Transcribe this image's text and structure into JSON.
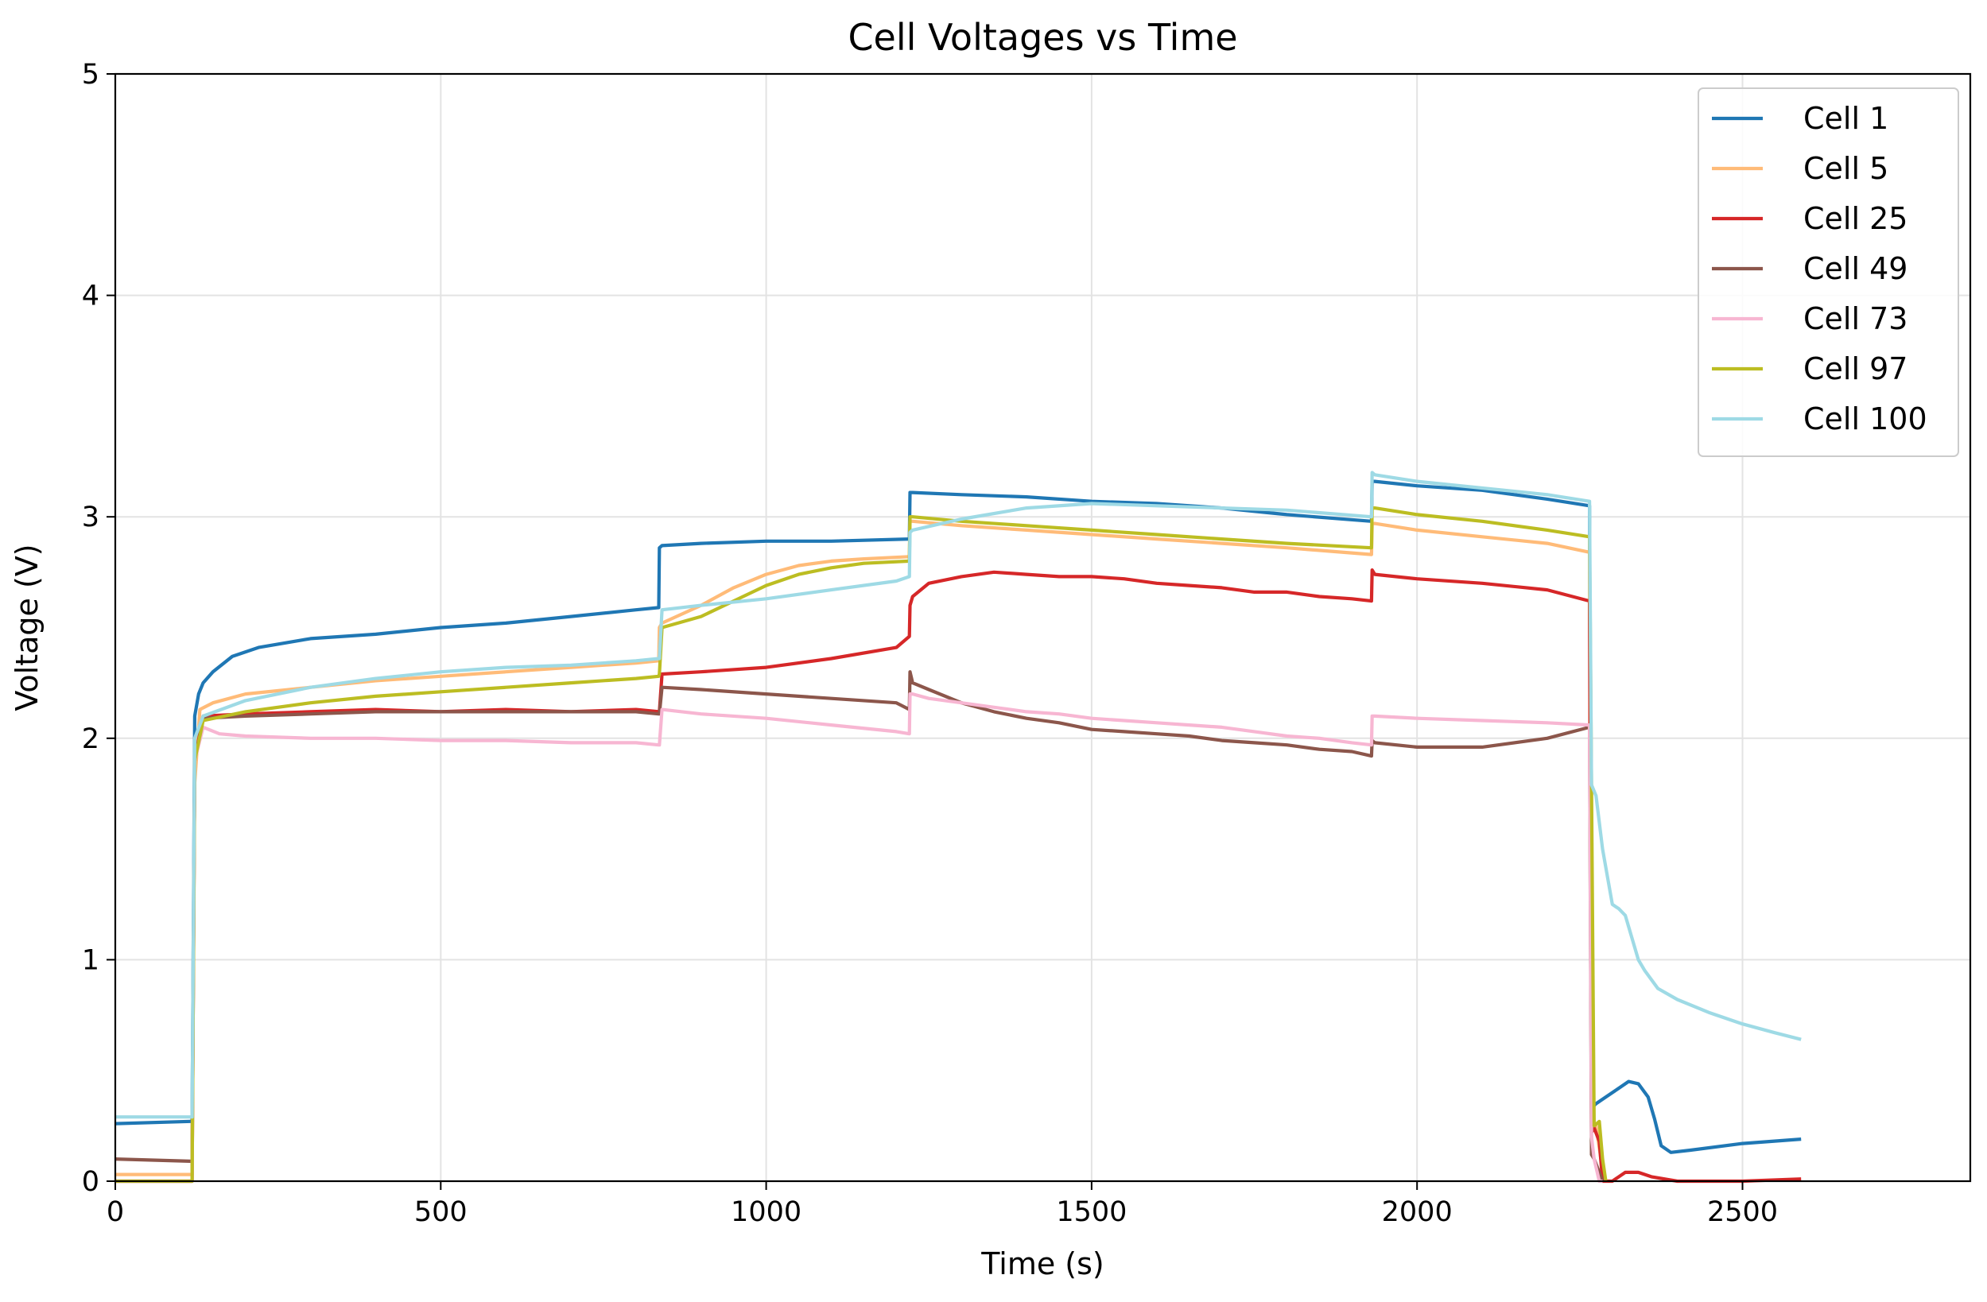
{
  "chart_data": {
    "type": "line",
    "title": "Cell Voltages vs Time",
    "xlabel": "Time (s)",
    "ylabel": "Voltage (V)",
    "xlim": [
      0,
      2850
    ],
    "ylim": [
      0,
      5
    ],
    "xticks": [
      0,
      500,
      1000,
      1500,
      2000,
      2500
    ],
    "yticks": [
      0,
      1,
      2,
      3,
      4,
      5
    ],
    "grid": true,
    "legend_position": "top-right",
    "series": [
      {
        "name": "Cell 1",
        "color": "#1f77b4",
        "x": [
          0,
          115,
          118,
          122,
          128,
          135,
          150,
          180,
          220,
          300,
          400,
          500,
          600,
          700,
          800,
          835,
          836,
          840,
          900,
          1000,
          1100,
          1220,
          1221,
          1225,
          1300,
          1400,
          1500,
          1600,
          1700,
          1800,
          1930,
          1931,
          1935,
          2000,
          2100,
          2200,
          2265,
          2268,
          2275,
          2290,
          2310,
          2325,
          2340,
          2355,
          2365,
          2375,
          2390,
          2420,
          2500,
          2590
        ],
        "y": [
          0.26,
          0.27,
          0.27,
          2.1,
          2.2,
          2.25,
          2.3,
          2.37,
          2.41,
          2.45,
          2.47,
          2.5,
          2.52,
          2.55,
          2.58,
          2.59,
          2.86,
          2.87,
          2.88,
          2.89,
          2.89,
          2.9,
          3.11,
          3.11,
          3.1,
          3.09,
          3.07,
          3.06,
          3.04,
          3.01,
          2.98,
          3.16,
          3.16,
          3.14,
          3.12,
          3.08,
          3.05,
          0.33,
          0.35,
          0.38,
          0.42,
          0.45,
          0.44,
          0.38,
          0.28,
          0.16,
          0.13,
          0.14,
          0.17,
          0.19
        ]
      },
      {
        "name": "Cell 5",
        "color": "#ffbb78",
        "x": [
          0,
          115,
          118,
          122,
          130,
          150,
          200,
          300,
          400,
          500,
          600,
          700,
          800,
          835,
          836,
          840,
          900,
          950,
          1000,
          1050,
          1100,
          1150,
          1220,
          1221,
          1225,
          1300,
          1400,
          1500,
          1600,
          1700,
          1800,
          1930,
          1931,
          1935,
          2000,
          2100,
          2200,
          2265,
          2268,
          2275,
          2285,
          2290
        ],
        "y": [
          0.03,
          0.03,
          0.03,
          1.8,
          2.13,
          2.16,
          2.2,
          2.23,
          2.26,
          2.28,
          2.3,
          2.32,
          2.34,
          2.35,
          2.5,
          2.52,
          2.6,
          2.68,
          2.74,
          2.78,
          2.8,
          2.81,
          2.82,
          2.98,
          2.98,
          2.96,
          2.94,
          2.92,
          2.9,
          2.88,
          2.86,
          2.83,
          2.97,
          2.97,
          2.94,
          2.91,
          2.88,
          2.84,
          0.28,
          0.25,
          0.05,
          0.0
        ]
      },
      {
        "name": "Cell 25",
        "color": "#d62728",
        "x": [
          0,
          115,
          118,
          122,
          135,
          200,
          300,
          400,
          500,
          600,
          700,
          800,
          835,
          836,
          840,
          900,
          1000,
          1100,
          1200,
          1220,
          1221,
          1225,
          1250,
          1300,
          1350,
          1400,
          1450,
          1500,
          1550,
          1600,
          1650,
          1700,
          1750,
          1800,
          1850,
          1900,
          1930,
          1931,
          1935,
          2000,
          2100,
          2200,
          2265,
          2268,
          2272,
          2280,
          2285,
          2300,
          2320,
          2340,
          2360,
          2400,
          2500,
          2590
        ],
        "y": [
          0.0,
          0.0,
          0.0,
          1.9,
          2.1,
          2.11,
          2.12,
          2.13,
          2.12,
          2.13,
          2.12,
          2.13,
          2.12,
          2.12,
          2.29,
          2.3,
          2.32,
          2.36,
          2.41,
          2.46,
          2.6,
          2.64,
          2.7,
          2.73,
          2.75,
          2.74,
          2.73,
          2.73,
          2.72,
          2.7,
          2.69,
          2.68,
          2.66,
          2.66,
          2.64,
          2.63,
          2.62,
          2.76,
          2.74,
          2.72,
          2.7,
          2.67,
          2.62,
          0.22,
          0.24,
          0.18,
          0.0,
          0.0,
          0.04,
          0.04,
          0.02,
          0.0,
          0.0,
          0.01
        ]
      },
      {
        "name": "Cell 49",
        "color": "#8c564b",
        "x": [
          0,
          115,
          118,
          122,
          135,
          200,
          300,
          400,
          500,
          600,
          700,
          800,
          835,
          836,
          840,
          900,
          1000,
          1100,
          1200,
          1220,
          1221,
          1225,
          1250,
          1300,
          1350,
          1400,
          1450,
          1500,
          1550,
          1600,
          1650,
          1700,
          1750,
          1800,
          1850,
          1900,
          1930,
          1931,
          1935,
          2000,
          2100,
          2200,
          2265,
          2268,
          2272,
          2280,
          2285
        ],
        "y": [
          0.1,
          0.09,
          0.09,
          1.9,
          2.09,
          2.1,
          2.11,
          2.12,
          2.12,
          2.12,
          2.12,
          2.12,
          2.11,
          2.11,
          2.23,
          2.22,
          2.2,
          2.18,
          2.16,
          2.13,
          2.3,
          2.25,
          2.22,
          2.16,
          2.12,
          2.09,
          2.07,
          2.04,
          2.03,
          2.02,
          2.01,
          1.99,
          1.98,
          1.97,
          1.95,
          1.94,
          1.92,
          1.99,
          1.98,
          1.96,
          1.96,
          2.0,
          2.05,
          0.12,
          0.1,
          0.04,
          0.0
        ]
      },
      {
        "name": "Cell 73",
        "color": "#f7b6d2",
        "x": [
          0,
          115,
          118,
          122,
          135,
          160,
          200,
          300,
          400,
          500,
          600,
          700,
          800,
          835,
          836,
          840,
          900,
          1000,
          1100,
          1200,
          1220,
          1221,
          1225,
          1250,
          1300,
          1350,
          1400,
          1450,
          1500,
          1550,
          1600,
          1650,
          1700,
          1750,
          1800,
          1850,
          1900,
          1930,
          1931,
          1935,
          2000,
          2100,
          2200,
          2265,
          2268,
          2272,
          2280,
          2285
        ],
        "y": [
          0.0,
          0.0,
          0.0,
          1.9,
          2.05,
          2.02,
          2.01,
          2.0,
          2.0,
          1.99,
          1.99,
          1.98,
          1.98,
          1.97,
          1.97,
          2.13,
          2.11,
          2.09,
          2.06,
          2.03,
          2.02,
          2.2,
          2.2,
          2.18,
          2.16,
          2.14,
          2.12,
          2.11,
          2.09,
          2.08,
          2.07,
          2.06,
          2.05,
          2.03,
          2.01,
          2.0,
          1.98,
          1.97,
          2.1,
          2.1,
          2.09,
          2.08,
          2.07,
          2.06,
          0.2,
          0.1,
          0.0,
          0.0
        ]
      },
      {
        "name": "Cell 97",
        "color": "#bcbd22",
        "x": [
          0,
          115,
          118,
          122,
          135,
          200,
          300,
          400,
          500,
          600,
          700,
          800,
          835,
          836,
          840,
          900,
          950,
          1000,
          1050,
          1100,
          1150,
          1220,
          1221,
          1225,
          1300,
          1400,
          1500,
          1600,
          1700,
          1800,
          1930,
          1931,
          1935,
          2000,
          2100,
          2200,
          2265,
          2268,
          2272,
          2280,
          2285,
          2290
        ],
        "y": [
          0.0,
          0.0,
          0.0,
          1.9,
          2.08,
          2.12,
          2.16,
          2.19,
          2.21,
          2.23,
          2.25,
          2.27,
          2.28,
          2.29,
          2.5,
          2.55,
          2.62,
          2.69,
          2.74,
          2.77,
          2.79,
          2.8,
          3.0,
          3.0,
          2.98,
          2.96,
          2.94,
          2.92,
          2.9,
          2.88,
          2.86,
          3.04,
          3.04,
          3.01,
          2.98,
          2.94,
          2.91,
          1.78,
          0.25,
          0.27,
          0.1,
          0.0
        ]
      },
      {
        "name": "Cell 100",
        "color": "#9edae5",
        "x": [
          0,
          115,
          118,
          122,
          135,
          200,
          300,
          400,
          500,
          600,
          700,
          800,
          835,
          836,
          840,
          900,
          1000,
          1100,
          1200,
          1220,
          1221,
          1225,
          1300,
          1400,
          1500,
          1600,
          1700,
          1800,
          1930,
          1931,
          1935,
          2000,
          2100,
          2200,
          2265,
          2268,
          2275,
          2285,
          2300,
          2310,
          2320,
          2330,
          2340,
          2350,
          2370,
          2400,
          2450,
          2500,
          2550,
          2590
        ],
        "y": [
          0.29,
          0.29,
          0.29,
          2.0,
          2.1,
          2.17,
          2.23,
          2.27,
          2.3,
          2.32,
          2.33,
          2.35,
          2.36,
          2.36,
          2.58,
          2.6,
          2.63,
          2.67,
          2.71,
          2.73,
          2.93,
          2.94,
          2.99,
          3.04,
          3.06,
          3.05,
          3.04,
          3.03,
          3.0,
          3.2,
          3.19,
          3.16,
          3.13,
          3.1,
          3.07,
          1.79,
          1.74,
          1.5,
          1.25,
          1.23,
          1.2,
          1.1,
          1.0,
          0.95,
          0.87,
          0.82,
          0.76,
          0.71,
          0.67,
          0.64
        ]
      }
    ]
  }
}
